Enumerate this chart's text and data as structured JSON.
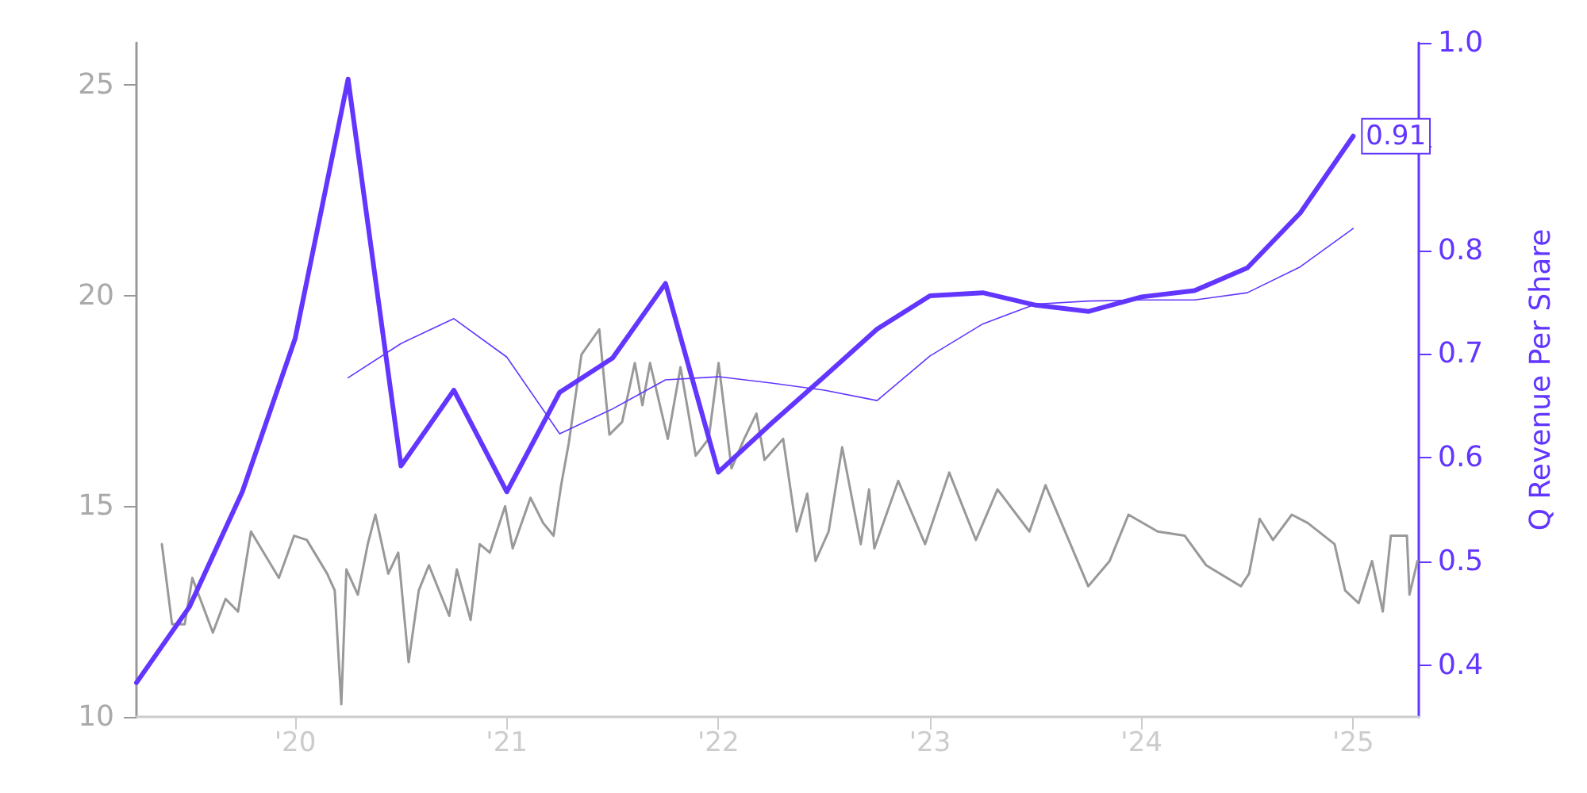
{
  "chart_data": {
    "type": "line",
    "y2label": "Q Revenue Per Share",
    "xlim": [
      2019.25,
      2025.31
    ],
    "xticks": [
      {
        "value": 2020,
        "label": "'20"
      },
      {
        "value": 2021,
        "label": "'21"
      },
      {
        "value": 2022,
        "label": "'22"
      },
      {
        "value": 2023,
        "label": "'23"
      },
      {
        "value": 2024,
        "label": "'24"
      },
      {
        "value": 2025,
        "label": "'25"
      }
    ],
    "ylim": [
      10,
      26
    ],
    "yticks": [
      10,
      15,
      20,
      25
    ],
    "y2lim": [
      0.35,
      1.0
    ],
    "y2ticks": [
      0.4,
      0.5,
      0.6,
      0.7,
      0.8,
      {
        "value": 0.9,
        "label": null
      },
      {
        "value": 1,
        "label": "1.0"
      }
    ],
    "grid": false,
    "marker": "none",
    "line_style": "solid",
    "series": [
      {
        "color": "#999999",
        "x": [
          2019.37,
          2019.418,
          2019.478,
          2019.514,
          2019.611,
          2019.671,
          2019.73,
          2019.791,
          2019.923,
          2019.995,
          2020.055,
          2020.151,
          2020.187,
          2020.218,
          2020.242,
          2020.296,
          2020.343,
          2020.379,
          2020.44,
          2020.487,
          2020.536,
          2020.584,
          2020.632,
          2020.728,
          2020.764,
          2020.829,
          2020.872,
          2020.92,
          2020.992,
          2021.028,
          2021.112,
          2021.172,
          2021.221,
          2021.257,
          2021.293,
          2021.353,
          2021.437,
          2021.485,
          2021.545,
          2021.605,
          2021.641,
          2021.677,
          2021.761,
          2021.821,
          2021.893,
          2021.954,
          2022.001,
          2022.062,
          2022.122,
          2022.18,
          2022.218,
          2022.306,
          2022.37,
          2022.42,
          2022.459,
          2022.521,
          2022.585,
          2022.673,
          2022.712,
          2022.737,
          2022.85,
          2022.977,
          2023.091,
          2023.217,
          2023.319,
          2023.47,
          2023.546,
          2023.647,
          2023.748,
          2023.849,
          2023.938,
          2024.076,
          2024.204,
          2024.305,
          2024.469,
          2024.508,
          2024.558,
          2024.621,
          2024.71,
          2024.786,
          2024.912,
          2024.962,
          2025.026,
          2025.089,
          2025.14,
          2025.178,
          2025.254,
          2025.266,
          2025.304
        ],
        "values": [
          14.1,
          12.2,
          12.2,
          13.3,
          12.0,
          12.8,
          12.5,
          14.4,
          13.3,
          14.3,
          14.2,
          13.4,
          13.0,
          10.3,
          13.5,
          12.9,
          14.1,
          14.8,
          13.4,
          13.9,
          11.3,
          13.0,
          13.6,
          12.4,
          13.5,
          12.3,
          14.1,
          13.9,
          15.0,
          14.0,
          15.2,
          14.6,
          14.3,
          15.5,
          16.5,
          18.6,
          19.2,
          16.7,
          17.0,
          18.4,
          17.4,
          18.4,
          16.6,
          18.3,
          16.2,
          16.6,
          18.4,
          15.9,
          16.6,
          17.2,
          16.1,
          16.6,
          14.4,
          15.3,
          13.7,
          14.4,
          16.4,
          14.1,
          15.4,
          14.0,
          15.6,
          14.1,
          15.8,
          14.2,
          15.4,
          14.4,
          15.5,
          14.3,
          13.1,
          13.7,
          14.8,
          14.4,
          14.3,
          13.6,
          13.1,
          13.4,
          14.7,
          14.2,
          14.8,
          14.6,
          14.1,
          13.0,
          12.7,
          13.7,
          12.5,
          14.3,
          14.3,
          12.9,
          13.7
        ]
      },
      {
        "color": "#6236ff",
        "axis": "y2",
        "x": [
          2019.25,
          2019.5,
          2019.75,
          2020.0,
          2020.25,
          2020.5,
          2020.75,
          2021.0,
          2021.25,
          2021.5,
          2021.75,
          2022.0,
          2022.25,
          2022.5,
          2022.75,
          2023.0,
          2023.25,
          2023.5,
          2023.75,
          2024.0,
          2024.25,
          2024.5,
          2024.75,
          2025.0
        ],
        "values": [
          0.383,
          0.456,
          0.567,
          0.715,
          0.965,
          0.592,
          0.665,
          0.567,
          0.663,
          0.696,
          0.768,
          0.586,
          0.633,
          0.678,
          0.724,
          0.756,
          0.759,
          0.747,
          0.741,
          0.755,
          0.761,
          0.783,
          0.836,
          0.91
        ],
        "value_labels": [
          null,
          null,
          null,
          null,
          null,
          null,
          null,
          null,
          null,
          null,
          null,
          null,
          null,
          null,
          null,
          null,
          null,
          null,
          null,
          null,
          null,
          null,
          null,
          "0.91"
        ]
      },
      {
        "color": "#6236ff",
        "axis": "y2",
        "x": [
          2020.25,
          2020.5,
          2020.75,
          2021.0,
          2021.25,
          2021.5,
          2021.75,
          2022.0,
          2022.25,
          2022.5,
          2022.75,
          2023.0,
          2023.25,
          2023.5,
          2023.75,
          2024.0,
          2024.25,
          2024.5,
          2024.75,
          2025.0
        ],
        "values": [
          0.677,
          0.71,
          0.734,
          0.697,
          0.623,
          0.647,
          0.675,
          0.678,
          0.672,
          0.665,
          0.655,
          0.698,
          0.729,
          0.748,
          0.751,
          0.752,
          0.752,
          0.759,
          0.784,
          0.821
        ]
      }
    ]
  }
}
